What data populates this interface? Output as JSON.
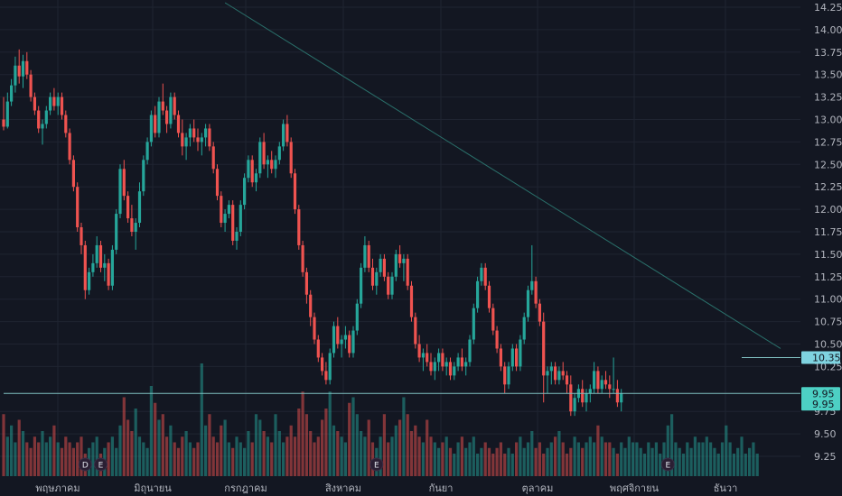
{
  "colors": {
    "background": "#131722",
    "grid": "#1f2431",
    "up": "#26a69a",
    "down": "#ef5350",
    "trendline": "#2a6f6a",
    "axis_text": "#b2b5be",
    "price_label_bg": "#4dd0c4",
    "price_label_alt_bg": "#7fd3e0"
  },
  "chart_data": {
    "type": "candlestick",
    "title": "",
    "xlabel": "",
    "ylabel": "",
    "ylim": [
      9.1,
      14.3
    ],
    "grid": true,
    "y_ticks": [
      "14.25",
      "14.00",
      "13.75",
      "13.50",
      "13.25",
      "13.00",
      "12.75",
      "12.50",
      "12.25",
      "12.00",
      "11.75",
      "11.50",
      "11.25",
      "11.00",
      "10.75",
      "10.50",
      "10.25",
      "9.75",
      "9.50",
      "9.25"
    ],
    "x_ticks": [
      "พฤษภาคม",
      "มิถุนายน",
      "กรกฎาคม",
      "สิงหาคม",
      "กันยา",
      "ตุลาคม",
      "พฤศจิกายน",
      "ธันวา"
    ],
    "price_labels": [
      {
        "value": "10.35",
        "price": 10.35,
        "style": "alt"
      },
      {
        "value": "9.95",
        "price": 9.95,
        "style": "main"
      },
      {
        "value": "9.95",
        "price": 9.83,
        "style": "main"
      }
    ],
    "horizontal_lines": [
      {
        "price": 9.95,
        "from_index": 0
      },
      {
        "price": 10.35,
        "from_index": 190
      }
    ],
    "trendline": {
      "from": [
        57,
        14.3
      ],
      "to": [
        200,
        10.45
      ]
    },
    "event_markers": [
      {
        "label": "D",
        "index": 21
      },
      {
        "label": "E",
        "index": 25
      },
      {
        "label": "E",
        "index": 96
      },
      {
        "label": "E",
        "index": 171
      }
    ],
    "candles": [
      [
        13.0,
        13.25,
        12.88,
        12.92
      ],
      [
        12.92,
        13.3,
        12.9,
        13.2
      ],
      [
        13.2,
        13.45,
        13.15,
        13.38
      ],
      [
        13.38,
        13.7,
        13.3,
        13.6
      ],
      [
        13.6,
        13.78,
        13.4,
        13.48
      ],
      [
        13.48,
        13.72,
        13.35,
        13.65
      ],
      [
        13.65,
        13.75,
        13.45,
        13.5
      ],
      [
        13.5,
        13.55,
        13.2,
        13.25
      ],
      [
        13.25,
        13.3,
        13.05,
        13.1
      ],
      [
        13.1,
        13.15,
        12.85,
        12.9
      ],
      [
        12.9,
        13.0,
        12.72,
        12.95
      ],
      [
        12.95,
        13.15,
        12.9,
        13.1
      ],
      [
        13.1,
        13.3,
        13.05,
        13.25
      ],
      [
        13.25,
        13.35,
        13.1,
        13.15
      ],
      [
        13.15,
        13.3,
        13.05,
        13.25
      ],
      [
        13.25,
        13.3,
        13.0,
        13.05
      ],
      [
        13.05,
        13.1,
        12.8,
        12.85
      ],
      [
        12.85,
        12.9,
        12.5,
        12.55
      ],
      [
        12.55,
        12.6,
        12.2,
        12.25
      ],
      [
        12.25,
        12.3,
        11.75,
        11.8
      ],
      [
        11.8,
        11.85,
        11.5,
        11.6
      ],
      [
        11.6,
        11.65,
        11.0,
        11.1
      ],
      [
        11.1,
        11.35,
        11.05,
        11.3
      ],
      [
        11.3,
        11.5,
        11.25,
        11.4
      ],
      [
        11.4,
        11.7,
        11.35,
        11.6
      ],
      [
        11.6,
        11.65,
        11.3,
        11.35
      ],
      [
        11.35,
        11.5,
        11.2,
        11.4
      ],
      [
        11.4,
        11.45,
        11.1,
        11.15
      ],
      [
        11.15,
        11.6,
        11.1,
        11.55
      ],
      [
        11.55,
        12.0,
        11.5,
        11.95
      ],
      [
        11.95,
        12.5,
        11.9,
        12.45
      ],
      [
        12.45,
        12.55,
        12.1,
        12.15
      ],
      [
        12.15,
        12.2,
        11.85,
        11.9
      ],
      [
        11.9,
        12.05,
        11.7,
        11.75
      ],
      [
        11.75,
        11.9,
        11.55,
        11.85
      ],
      [
        11.85,
        12.3,
        11.8,
        12.2
      ],
      [
        12.2,
        12.6,
        12.15,
        12.55
      ],
      [
        12.55,
        12.8,
        12.5,
        12.75
      ],
      [
        12.75,
        13.1,
        12.7,
        13.05
      ],
      [
        13.05,
        13.15,
        12.8,
        12.85
      ],
      [
        12.85,
        13.25,
        12.8,
        13.2
      ],
      [
        13.2,
        13.4,
        13.05,
        13.1
      ],
      [
        13.1,
        13.15,
        12.85,
        12.95
      ],
      [
        12.95,
        13.3,
        12.9,
        13.25
      ],
      [
        13.25,
        13.3,
        13.0,
        13.05
      ],
      [
        13.05,
        13.1,
        12.8,
        12.85
      ],
      [
        12.85,
        13.0,
        12.6,
        12.7
      ],
      [
        12.7,
        12.85,
        12.55,
        12.8
      ],
      [
        12.8,
        12.95,
        12.7,
        12.9
      ],
      [
        12.9,
        13.0,
        12.75,
        12.8
      ],
      [
        12.8,
        12.9,
        12.65,
        12.75
      ],
      [
        12.75,
        12.85,
        12.6,
        12.8
      ],
      [
        12.8,
        12.95,
        12.7,
        12.9
      ],
      [
        12.9,
        12.95,
        12.65,
        12.7
      ],
      [
        12.7,
        12.75,
        12.4,
        12.45
      ],
      [
        12.45,
        12.5,
        12.1,
        12.15
      ],
      [
        12.15,
        12.2,
        11.8,
        11.85
      ],
      [
        11.85,
        12.0,
        11.75,
        11.95
      ],
      [
        11.95,
        12.1,
        11.9,
        12.05
      ],
      [
        12.05,
        12.1,
        11.6,
        11.65
      ],
      [
        11.65,
        11.8,
        11.55,
        11.75
      ],
      [
        11.75,
        12.1,
        11.7,
        12.05
      ],
      [
        12.05,
        12.4,
        12.0,
        12.35
      ],
      [
        12.35,
        12.6,
        12.3,
        12.55
      ],
      [
        12.55,
        12.6,
        12.25,
        12.3
      ],
      [
        12.3,
        12.45,
        12.2,
        12.4
      ],
      [
        12.4,
        12.8,
        12.35,
        12.75
      ],
      [
        12.75,
        12.85,
        12.45,
        12.5
      ],
      [
        12.5,
        12.6,
        12.35,
        12.55
      ],
      [
        12.55,
        12.65,
        12.4,
        12.45
      ],
      [
        12.45,
        12.6,
        12.35,
        12.55
      ],
      [
        12.55,
        12.75,
        12.5,
        12.7
      ],
      [
        12.7,
        13.0,
        12.65,
        12.95
      ],
      [
        12.95,
        13.05,
        12.7,
        12.75
      ],
      [
        12.75,
        12.8,
        12.35,
        12.4
      ],
      [
        12.4,
        12.45,
        11.95,
        12.0
      ],
      [
        12.0,
        12.05,
        11.55,
        11.6
      ],
      [
        11.6,
        11.65,
        11.25,
        11.3
      ],
      [
        11.3,
        11.35,
        10.95,
        11.05
      ],
      [
        11.05,
        11.1,
        10.7,
        10.8
      ],
      [
        10.8,
        10.85,
        10.5,
        10.55
      ],
      [
        10.55,
        10.6,
        10.3,
        10.35
      ],
      [
        10.35,
        10.4,
        10.15,
        10.2
      ],
      [
        10.2,
        10.3,
        10.05,
        10.1
      ],
      [
        10.1,
        10.45,
        10.05,
        10.4
      ],
      [
        10.4,
        10.75,
        10.35,
        10.7
      ],
      [
        10.7,
        10.8,
        10.45,
        10.5
      ],
      [
        10.5,
        10.6,
        10.35,
        10.55
      ],
      [
        10.55,
        10.7,
        10.45,
        10.6
      ],
      [
        10.6,
        10.65,
        10.35,
        10.4
      ],
      [
        10.4,
        10.7,
        10.35,
        10.65
      ],
      [
        10.65,
        11.0,
        10.6,
        10.95
      ],
      [
        10.95,
        11.4,
        10.9,
        11.35
      ],
      [
        11.35,
        11.7,
        11.3,
        11.6
      ],
      [
        11.6,
        11.65,
        11.3,
        11.35
      ],
      [
        11.35,
        11.45,
        11.1,
        11.15
      ],
      [
        11.15,
        11.35,
        11.05,
        11.3
      ],
      [
        11.3,
        11.5,
        11.25,
        11.45
      ],
      [
        11.45,
        11.5,
        11.2,
        11.25
      ],
      [
        11.25,
        11.3,
        11.0,
        11.05
      ],
      [
        11.05,
        11.3,
        11.0,
        11.25
      ],
      [
        11.25,
        11.55,
        11.2,
        11.5
      ],
      [
        11.5,
        11.6,
        11.35,
        11.4
      ],
      [
        11.4,
        11.5,
        11.2,
        11.45
      ],
      [
        11.45,
        11.5,
        11.1,
        11.15
      ],
      [
        11.15,
        11.2,
        10.75,
        10.8
      ],
      [
        10.8,
        10.85,
        10.45,
        10.5
      ],
      [
        10.5,
        10.6,
        10.3,
        10.35
      ],
      [
        10.35,
        10.45,
        10.2,
        10.4
      ],
      [
        10.4,
        10.5,
        10.25,
        10.3
      ],
      [
        10.3,
        10.4,
        10.15,
        10.2
      ],
      [
        10.2,
        10.35,
        10.1,
        10.3
      ],
      [
        10.3,
        10.45,
        10.2,
        10.4
      ],
      [
        10.4,
        10.45,
        10.2,
        10.25
      ],
      [
        10.25,
        10.35,
        10.15,
        10.3
      ],
      [
        10.3,
        10.35,
        10.1,
        10.15
      ],
      [
        10.15,
        10.3,
        10.1,
        10.25
      ],
      [
        10.25,
        10.4,
        10.2,
        10.35
      ],
      [
        10.35,
        10.45,
        10.2,
        10.25
      ],
      [
        10.25,
        10.35,
        10.15,
        10.3
      ],
      [
        10.3,
        10.6,
        10.25,
        10.55
      ],
      [
        10.55,
        10.95,
        10.5,
        10.9
      ],
      [
        10.9,
        11.25,
        10.85,
        11.2
      ],
      [
        11.2,
        11.4,
        11.15,
        11.35
      ],
      [
        11.35,
        11.4,
        11.1,
        11.15
      ],
      [
        11.15,
        11.2,
        10.85,
        10.9
      ],
      [
        10.9,
        10.95,
        10.6,
        10.65
      ],
      [
        10.65,
        10.7,
        10.4,
        10.45
      ],
      [
        10.45,
        10.5,
        10.2,
        10.25
      ],
      [
        10.25,
        10.3,
        9.95,
        10.05
      ],
      [
        10.05,
        10.3,
        10.0,
        10.25
      ],
      [
        10.25,
        10.5,
        10.2,
        10.45
      ],
      [
        10.45,
        10.5,
        10.2,
        10.25
      ],
      [
        10.25,
        10.6,
        10.2,
        10.55
      ],
      [
        10.55,
        10.85,
        10.5,
        10.8
      ],
      [
        10.8,
        11.15,
        10.75,
        11.1
      ],
      [
        11.1,
        11.6,
        11.05,
        11.2
      ],
      [
        11.2,
        11.25,
        10.9,
        10.95
      ],
      [
        10.95,
        11.0,
        10.7,
        10.75
      ],
      [
        10.75,
        10.85,
        9.85,
        10.15
      ],
      [
        10.15,
        10.25,
        9.95,
        10.2
      ],
      [
        10.2,
        10.3,
        10.05,
        10.25
      ],
      [
        10.25,
        10.3,
        10.05,
        10.1
      ],
      [
        10.1,
        10.25,
        10.05,
        10.2
      ],
      [
        10.2,
        10.3,
        10.1,
        10.15
      ],
      [
        10.15,
        10.2,
        9.95,
        10.05
      ],
      [
        10.05,
        10.15,
        9.7,
        9.75
      ],
      [
        9.75,
        9.95,
        9.7,
        9.9
      ],
      [
        9.9,
        10.05,
        9.85,
        10.0
      ],
      [
        10.0,
        10.1,
        9.8,
        9.85
      ],
      [
        9.85,
        10.0,
        9.75,
        9.95
      ],
      [
        9.95,
        10.05,
        9.85,
        10.0
      ],
      [
        10.0,
        10.3,
        9.95,
        10.2
      ],
      [
        10.2,
        10.25,
        9.95,
        10.0
      ],
      [
        10.0,
        10.15,
        9.95,
        10.1
      ],
      [
        10.1,
        10.2,
        10.0,
        10.05
      ],
      [
        10.05,
        10.15,
        9.9,
        10.0
      ],
      [
        10.0,
        10.35,
        9.95,
        10.0
      ],
      [
        10.0,
        10.1,
        9.8,
        9.85
      ],
      [
        9.85,
        10.0,
        9.75,
        9.95
      ]
    ],
    "volumes": [
      0.55,
      0.35,
      0.45,
      0.3,
      0.5,
      0.4,
      0.3,
      0.25,
      0.35,
      0.3,
      0.4,
      0.3,
      0.35,
      0.45,
      0.3,
      0.25,
      0.35,
      0.3,
      0.25,
      0.3,
      0.35,
      0.2,
      0.25,
      0.3,
      0.35,
      0.2,
      0.25,
      0.3,
      0.35,
      0.25,
      0.45,
      0.7,
      0.5,
      0.4,
      0.6,
      0.35,
      0.3,
      0.25,
      0.8,
      0.65,
      0.5,
      0.55,
      0.35,
      0.45,
      0.3,
      0.25,
      0.35,
      0.4,
      0.3,
      0.25,
      0.3,
      1.0,
      0.45,
      0.55,
      0.35,
      0.3,
      0.45,
      0.5,
      0.3,
      0.25,
      0.35,
      0.3,
      0.25,
      0.4,
      0.3,
      0.55,
      0.5,
      0.4,
      0.35,
      0.3,
      0.55,
      0.4,
      0.3,
      0.35,
      0.45,
      0.35,
      0.6,
      0.75,
      0.55,
      0.4,
      0.3,
      0.35,
      0.5,
      0.6,
      0.75,
      0.45,
      0.4,
      0.35,
      0.3,
      0.65,
      0.7,
      0.55,
      0.4,
      0.35,
      0.5,
      0.3,
      0.25,
      0.35,
      0.55,
      0.3,
      0.35,
      0.45,
      0.5,
      0.7,
      0.55,
      0.4,
      0.45,
      0.35,
      0.3,
      0.5,
      0.35,
      0.3,
      0.25,
      0.3,
      0.35,
      0.25,
      0.2,
      0.3,
      0.35,
      0.25,
      0.3,
      0.35,
      0.2,
      0.25,
      0.3,
      0.25,
      0.2,
      0.25,
      0.3,
      0.2,
      0.25,
      0.2,
      0.3,
      0.35,
      0.25,
      0.3,
      0.4,
      0.25,
      0.3,
      0.2,
      0.25,
      0.3,
      0.35,
      0.4,
      0.3,
      0.2,
      0.25,
      0.35,
      0.3,
      0.25,
      0.3,
      0.35,
      0.3,
      0.45,
      0.35,
      0.3,
      0.3,
      0.25,
      0.2,
      0.3,
      0.25,
      0.35,
      0.3,
      0.3,
      0.25,
      0.2,
      0.3,
      0.25,
      0.3,
      0.2,
      0.3,
      0.45,
      0.55,
      0.3,
      0.25,
      0.2,
      0.3,
      0.25,
      0.35,
      0.3,
      0.3,
      0.35,
      0.3,
      0.25,
      0.2,
      0.3,
      0.45,
      0.3,
      0.2,
      0.25,
      0.35,
      0.2,
      0.25,
      0.3,
      0.2
    ]
  }
}
